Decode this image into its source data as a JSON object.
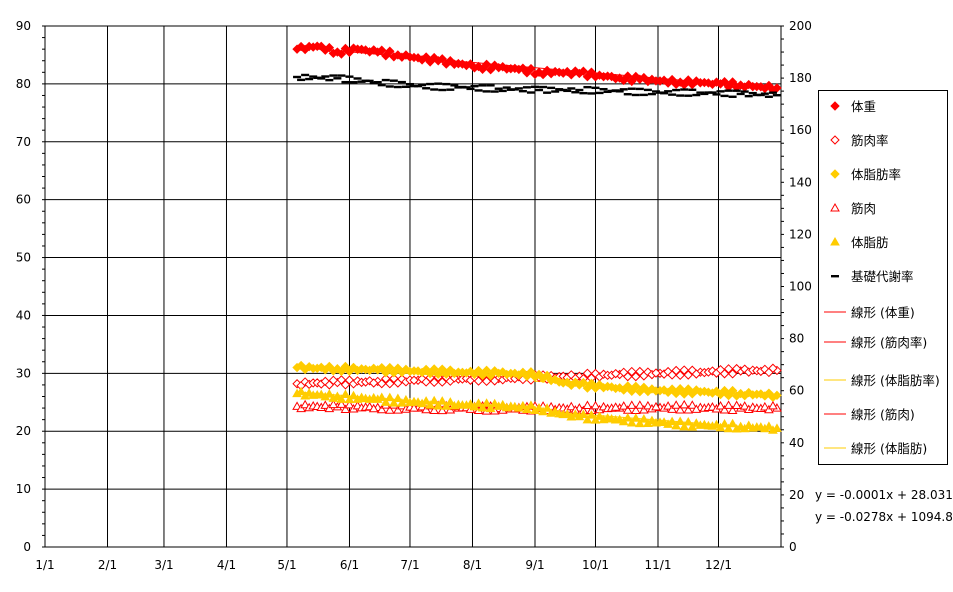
{
  "chart_data": {
    "type": "scatter",
    "x_axis": {
      "ticks": [
        "1/1",
        "2/1",
        "3/1",
        "4/1",
        "5/1",
        "6/1",
        "7/1",
        "8/1",
        "9/1",
        "10/1",
        "11/1",
        "12/1"
      ],
      "range_days": [
        0,
        365
      ]
    },
    "y_left": {
      "range": [
        0,
        90
      ],
      "ticks": [
        0,
        10,
        20,
        30,
        40,
        50,
        60,
        70,
        80,
        90
      ]
    },
    "y_right": {
      "range": [
        0,
        200
      ],
      "ticks": [
        0,
        20,
        40,
        60,
        80,
        100,
        120,
        140,
        160,
        180,
        200
      ]
    },
    "grid": true,
    "legend_position": "right",
    "series": [
      {
        "name": "体重",
        "axis": "left",
        "marker": "diamond-filled",
        "color": "#ff0000",
        "points": [
          [
            125,
            86.0
          ],
          [
            135,
            86.5
          ],
          [
            145,
            85.5
          ],
          [
            155,
            86.0
          ],
          [
            165,
            85.5
          ],
          [
            175,
            85.0
          ],
          [
            185,
            84.5
          ],
          [
            195,
            84.0
          ],
          [
            205,
            83.5
          ],
          [
            215,
            83.0
          ],
          [
            225,
            82.8
          ],
          [
            235,
            82.5
          ],
          [
            245,
            82.0
          ],
          [
            255,
            82.0
          ],
          [
            265,
            81.8
          ],
          [
            275,
            81.5
          ],
          [
            285,
            81.0
          ],
          [
            295,
            80.8
          ],
          [
            305,
            80.5
          ],
          [
            315,
            80.3
          ],
          [
            325,
            80.2
          ],
          [
            335,
            80.0
          ],
          [
            345,
            79.8
          ],
          [
            355,
            79.5
          ],
          [
            363,
            79.3
          ]
        ]
      },
      {
        "name": "筋肉率",
        "axis": "left",
        "marker": "diamond-open",
        "color": "#ff0000",
        "points": [
          [
            125,
            28.2
          ],
          [
            145,
            28.4
          ],
          [
            165,
            28.6
          ],
          [
            185,
            28.8
          ],
          [
            205,
            29.0
          ],
          [
            225,
            29.1
          ],
          [
            245,
            29.3
          ],
          [
            265,
            29.5
          ],
          [
            285,
            29.8
          ],
          [
            305,
            30.0
          ],
          [
            325,
            30.2
          ],
          [
            345,
            30.4
          ],
          [
            363,
            30.5
          ]
        ]
      },
      {
        "name": "体脂肪率",
        "axis": "left",
        "marker": "diamond-filled",
        "color": "#ffcc00",
        "points": [
          [
            125,
            31.0
          ],
          [
            145,
            30.8
          ],
          [
            165,
            30.6
          ],
          [
            185,
            30.4
          ],
          [
            205,
            30.2
          ],
          [
            225,
            30.0
          ],
          [
            245,
            29.8
          ],
          [
            255,
            28.5
          ],
          [
            265,
            28.0
          ],
          [
            285,
            27.5
          ],
          [
            305,
            27.0
          ],
          [
            325,
            26.8
          ],
          [
            345,
            26.5
          ],
          [
            363,
            26.2
          ]
        ]
      },
      {
        "name": "筋肉",
        "axis": "left",
        "marker": "triangle-open",
        "color": "#ff0000",
        "points": [
          [
            125,
            24.3
          ],
          [
            145,
            24.2
          ],
          [
            165,
            24.1
          ],
          [
            185,
            24.0
          ],
          [
            205,
            24.0
          ],
          [
            225,
            23.9
          ],
          [
            245,
            23.9
          ],
          [
            265,
            24.0
          ],
          [
            285,
            24.0
          ],
          [
            305,
            24.1
          ],
          [
            325,
            24.1
          ],
          [
            345,
            24.0
          ],
          [
            363,
            24.0
          ]
        ]
      },
      {
        "name": "体脂肪",
        "axis": "left",
        "marker": "triangle-filled",
        "color": "#ffcc00",
        "points": [
          [
            125,
            26.5
          ],
          [
            145,
            26.0
          ],
          [
            165,
            25.5
          ],
          [
            185,
            25.0
          ],
          [
            205,
            24.6
          ],
          [
            225,
            24.3
          ],
          [
            245,
            24.0
          ],
          [
            255,
            23.0
          ],
          [
            265,
            22.5
          ],
          [
            285,
            22.0
          ],
          [
            305,
            21.5
          ],
          [
            325,
            21.0
          ],
          [
            345,
            20.8
          ],
          [
            363,
            20.5
          ]
        ]
      },
      {
        "name": "基礎代謝率",
        "axis": "right",
        "marker": "dash",
        "color": "#000000",
        "points": [
          [
            125,
            180.5
          ],
          [
            145,
            180.0
          ],
          [
            165,
            178.5
          ],
          [
            185,
            177.0
          ],
          [
            205,
            176.5
          ],
          [
            225,
            176.0
          ],
          [
            245,
            175.5
          ],
          [
            265,
            175.5
          ],
          [
            285,
            175.0
          ],
          [
            305,
            174.5
          ],
          [
            325,
            174.5
          ],
          [
            345,
            174.0
          ],
          [
            363,
            173.5
          ]
        ]
      }
    ],
    "trendlines": [
      {
        "name": "線形 (体重)",
        "color": "#ff0000",
        "axis": "left",
        "x0": 125,
        "y0": 86.3,
        "x1": 364,
        "y1": 79.2
      },
      {
        "name": "線形 (筋肉率)",
        "color": "#ff0000",
        "axis": "left",
        "x0": 125,
        "y0": 28.2,
        "x1": 364,
        "y1": 30.6
      },
      {
        "name": "線形 (体脂肪率)",
        "color": "#ffcc00",
        "axis": "left",
        "x0": 125,
        "y0": 31.2,
        "x1": 364,
        "y1": 26.0
      },
      {
        "name": "線形 (筋肉)",
        "color": "#ff0000",
        "axis": "left",
        "x0": 125,
        "y0": 24.2,
        "x1": 364,
        "y1": 24.0
      },
      {
        "name": "線形 (体脂肪)",
        "color": "#ffcc00",
        "axis": "left",
        "x0": 125,
        "y0": 26.8,
        "x1": 364,
        "y1": 20.3
      }
    ],
    "equations": [
      "y = -0.0001x + 28.031",
      "y = -0.0278x + 1094.8"
    ]
  },
  "legend": {
    "items": [
      {
        "label": "体重",
        "symbol": "diamond-filled",
        "color": "#ff0000"
      },
      {
        "label": "筋肉率",
        "symbol": "diamond-open",
        "color": "#ff0000"
      },
      {
        "label": "体脂肪率",
        "symbol": "diamond-filled",
        "color": "#ffcc00"
      },
      {
        "label": "筋肉",
        "symbol": "triangle-open",
        "color": "#ff0000"
      },
      {
        "label": "体脂肪",
        "symbol": "triangle-filled",
        "color": "#ffcc00"
      },
      {
        "label": "基礎代謝率",
        "symbol": "dash",
        "color": "#000000"
      },
      {
        "label": "線形 (体重)",
        "symbol": "line",
        "color": "#ff0000"
      },
      {
        "label": "線形 (筋肉率)",
        "symbol": "line",
        "color": "#ff0000"
      },
      {
        "label": "線形 (体脂肪率)",
        "symbol": "line",
        "color": "#ffcc00"
      },
      {
        "label": "線形 (筋肉)",
        "symbol": "line",
        "color": "#ff0000"
      },
      {
        "label": "線形 (体脂肪)",
        "symbol": "line",
        "color": "#ffcc00"
      }
    ]
  }
}
